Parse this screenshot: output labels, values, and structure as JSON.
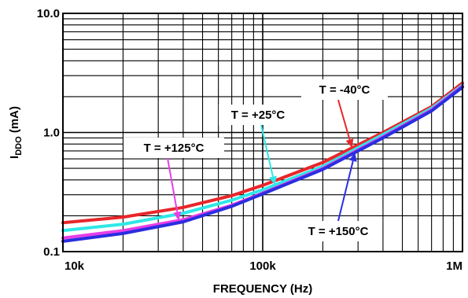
{
  "chart_data": {
    "type": "line",
    "title": "",
    "xlabel": "FREQUENCY (Hz)",
    "ylabel_main": "I",
    "ylabel_sub": "DDO",
    "ylabel_unit": " (mA)",
    "xscale": "log",
    "yscale": "log",
    "xlim": [
      10000,
      1000000
    ],
    "ylim": [
      0.1,
      10
    ],
    "grid": true,
    "legend": "none",
    "x_ticks": [
      {
        "value": 10000,
        "label": "10k"
      },
      {
        "value": 100000,
        "label": "100k"
      },
      {
        "value": 1000000,
        "label": "1M"
      }
    ],
    "y_ticks": [
      {
        "value": 0.1,
        "label": "0.1"
      },
      {
        "value": 1,
        "label": "1.0"
      },
      {
        "value": 10,
        "label": "10.0"
      }
    ],
    "series": [
      {
        "name": "T = -40°C",
        "color": "#e8262a",
        "x": [
          10000,
          20000,
          40000,
          70000,
          100000,
          200000,
          400000,
          700000,
          1000000
        ],
        "y": [
          0.175,
          0.195,
          0.235,
          0.295,
          0.36,
          0.56,
          1.0,
          1.65,
          2.6
        ]
      },
      {
        "name": "T = +25°C",
        "color": "#2ee8e6",
        "x": [
          10000,
          20000,
          40000,
          70000,
          100000,
          200000,
          400000,
          700000,
          1000000
        ],
        "y": [
          0.15,
          0.17,
          0.21,
          0.27,
          0.33,
          0.52,
          0.96,
          1.6,
          2.5
        ]
      },
      {
        "name": "T = +125°C",
        "color": "#e83ee8",
        "x": [
          10000,
          20000,
          40000,
          70000,
          100000,
          200000,
          400000,
          700000,
          1000000
        ],
        "y": [
          0.13,
          0.15,
          0.185,
          0.245,
          0.31,
          0.5,
          0.92,
          1.55,
          2.45
        ]
      },
      {
        "name": "T = +150°C",
        "color": "#2a2ee0",
        "x": [
          10000,
          20000,
          40000,
          70000,
          100000,
          200000,
          400000,
          700000,
          1000000
        ],
        "y": [
          0.122,
          0.142,
          0.178,
          0.24,
          0.305,
          0.49,
          0.9,
          1.52,
          2.4
        ]
      }
    ],
    "annotations": [
      {
        "text": "T = -40°C",
        "series": "T = -40°C",
        "arrow_color": "#e8262a",
        "target_x": 280000
      },
      {
        "text": "T = +25°C",
        "series": "T = +25°C",
        "arrow_color": "#2ee8e6",
        "target_x": 115000
      },
      {
        "text": "T = +125°C",
        "series": "T = +125°C",
        "arrow_color": "#e83ee8",
        "target_x": 38000
      },
      {
        "text": "T = +150°C",
        "series": "T = +150°C",
        "arrow_color": "#2a2ee0",
        "target_x": 290000
      }
    ]
  }
}
